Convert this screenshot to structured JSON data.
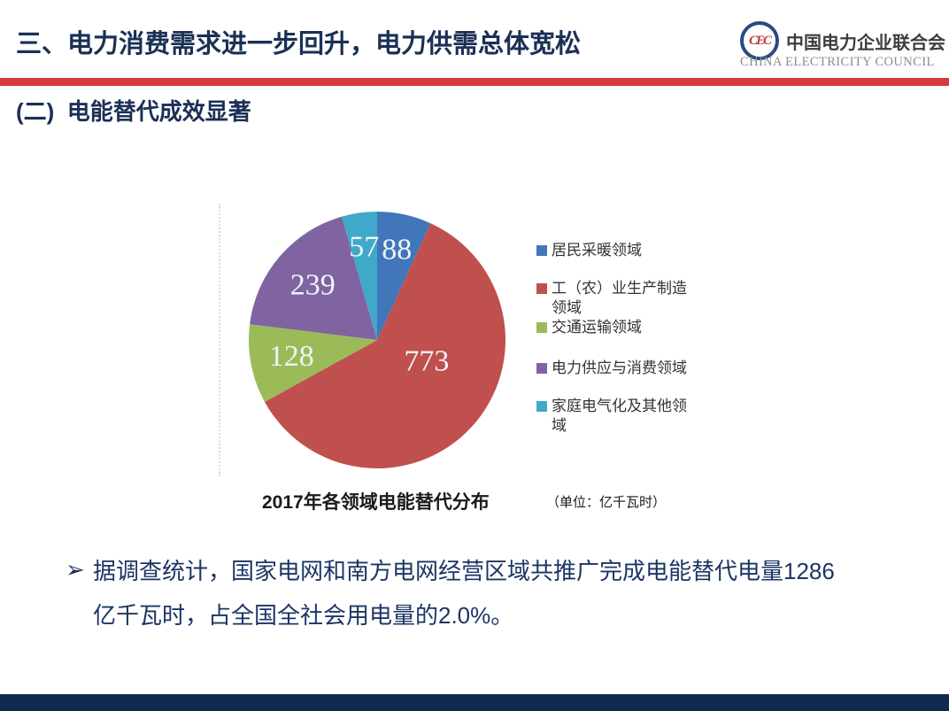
{
  "header": {
    "title": "三、电力消费需求进一步回升，电力供需总体宽松"
  },
  "logo": {
    "monogram": "CEC",
    "name_cn": "中国电力企业联合会",
    "name_en": "CHINA ELECTRICITY COUNCIL"
  },
  "section": {
    "title": "(二)  电能替代成效显著"
  },
  "chart_data": {
    "type": "pie",
    "title": "2017年各领域电能替代分布",
    "unit_label": "（单位：亿千瓦时）",
    "categories": [
      "居民采暖领域",
      "工（农）业生产制造领域",
      "交通运输领域",
      "电力供应与消费领域",
      "家庭电气化及其他领域"
    ],
    "values": [
      88,
      773,
      128,
      239,
      57
    ],
    "data_labels": [
      88,
      773,
      128,
      239,
      57
    ],
    "colors": [
      "#4276BA",
      "#C0504D",
      "#9BBB59",
      "#8064A2",
      "#3FA9C9"
    ],
    "start_angle_deg": 0,
    "direction": "clockwise",
    "legend_position": "right"
  },
  "body": {
    "bullet_marker": "➢",
    "bullet_line1": "据调查统计，国家电网和南方电网经营区域共推广完成电能替代电量1286",
    "bullet_line2": "亿千瓦时，占全国全社会用电量的2.0%。"
  },
  "colors": {
    "accent_red": "#D43C3C",
    "heading_navy": "#1B3055",
    "body_navy": "#1C3565",
    "footer_navy": "#122A4E"
  }
}
